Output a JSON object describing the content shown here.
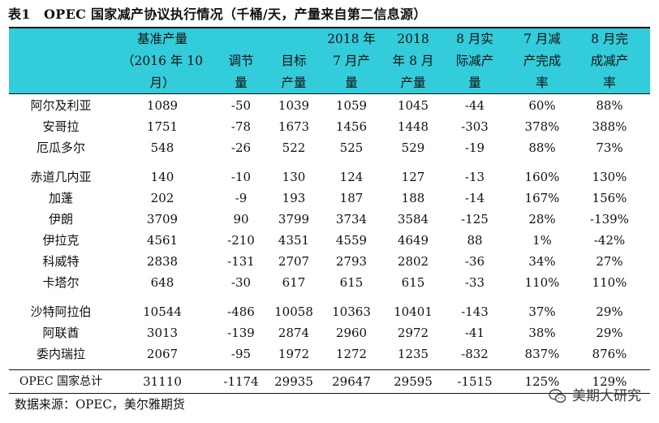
{
  "title": "表1　OPEC 国家减产协议执行情况（千桶/天，产量来自第二信息源）",
  "headers": [
    [
      "基准产量",
      "（2016 年 10",
      "月）"
    ],
    [
      "调节",
      "量"
    ],
    [
      "目标",
      "产量"
    ],
    [
      "2018 年",
      "7 月产",
      "量"
    ],
    [
      "2018",
      "年 8 月",
      "产量"
    ],
    [
      "8 月实",
      "际减产",
      "量"
    ],
    [
      "7 月减",
      "产完成",
      "率"
    ],
    [
      "8 月完",
      "成减产",
      "率"
    ]
  ],
  "rows": [
    [
      "阿尔及利亚",
      "1089",
      "-50",
      "1039",
      "1059",
      "1045",
      "-44",
      "60%",
      "88%"
    ],
    [
      "安哥拉",
      "1751",
      "-78",
      "1673",
      "1456",
      "1448",
      "-303",
      "378%",
      "388%"
    ],
    [
      "厄瓜多尔",
      "548",
      "-26",
      "522",
      "525",
      "529",
      "-19",
      "88%",
      "73%"
    ],
    [
      "赤道几内亚",
      "140",
      "-10",
      "130",
      "124",
      "127",
      "-13",
      "160%",
      "130%"
    ],
    [
      "加蓬",
      "202",
      "-9",
      "193",
      "187",
      "188",
      "-14",
      "167%",
      "156%"
    ],
    [
      "伊朗",
      "3709",
      "90",
      "3799",
      "3734",
      "3584",
      "-125",
      "28%",
      "-139%"
    ],
    [
      "伊拉克",
      "4561",
      "-210",
      "4351",
      "4559",
      "4649",
      "88",
      "1%",
      "-42%"
    ],
    [
      "科威特",
      "2838",
      "-131",
      "2707",
      "2793",
      "2802",
      "-36",
      "34%",
      "27%"
    ],
    [
      "卡塔尔",
      "648",
      "-30",
      "617",
      "615",
      "615",
      "-33",
      "110%",
      "110%"
    ],
    [
      "沙特阿拉伯",
      "10544",
      "-486",
      "10058",
      "10363",
      "10401",
      "-143",
      "37%",
      "29%"
    ],
    [
      "阿联酋",
      "3013",
      "-139",
      "2874",
      "2960",
      "2972",
      "-41",
      "38%",
      "29%"
    ],
    [
      "委内瑞拉",
      "2067",
      "-95",
      "1972",
      "1272",
      "1235",
      "-832",
      "837%",
      "876%"
    ]
  ],
  "total": [
    "OPEC 国家总计",
    "31110",
    "-1174",
    "29935",
    "29647",
    "29595",
    "-1515",
    "125%",
    "129%"
  ],
  "source": "数据来源：OPEC，美尔雅期货",
  "watermark": "美期大研究",
  "colors": {
    "header_bg": "#33ccdb",
    "rule": "#111111"
  }
}
